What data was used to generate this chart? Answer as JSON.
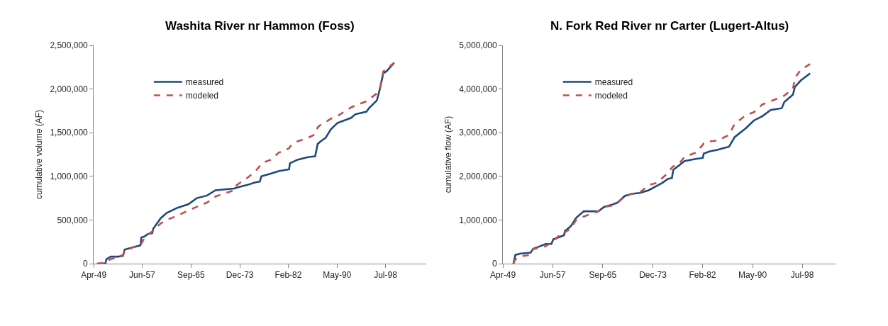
{
  "chart_data": [
    {
      "type": "line",
      "title": "Washita River nr Hammon (Foss)",
      "ylabel": "cumulative volume (AF)",
      "legend": "top left",
      "marker": "none",
      "x": [
        "1949-11",
        "1951-04",
        "1951-06",
        "1952-03",
        "1953-06",
        "1954-04",
        "1954-07",
        "1956-02",
        "1957-03",
        "1957-05",
        "1957-11",
        "1958-06",
        "1959-03",
        "1959-05",
        "1960-08",
        "1961-08",
        "1963-06",
        "1965-04",
        "1966-09",
        "1968-06",
        "1969-11",
        "1973-01",
        "1973-06",
        "1975-03",
        "1976-07",
        "1977-05",
        "1977-08",
        "1979-03",
        "1980-07",
        "1982-04",
        "1982-06",
        "1983-09",
        "1985-06",
        "1986-09",
        "1987-02",
        "1987-08",
        "1988-06",
        "1989-05",
        "1990-06",
        "1992-10",
        "1993-06",
        "1995-05",
        "1995-10",
        "1997-02",
        "1997-08",
        "1998-03",
        "1998-09",
        "2000-01"
      ],
      "xlim": [
        "1949-04-15",
        "2005-06-01"
      ],
      "xticks": [
        {
          "value": "1949-04-15",
          "label": "Apr-49"
        },
        {
          "value": "1957-06-15",
          "label": "Jun-57"
        },
        {
          "value": "1965-09-15",
          "label": "Sep-65"
        },
        {
          "value": "1973-12-15",
          "label": "Dec-73"
        },
        {
          "value": "1982-02-15",
          "label": "Feb-82"
        },
        {
          "value": "1990-05-15",
          "label": "May-90"
        },
        {
          "value": "1998-07-15",
          "label": "Jul-98"
        }
      ],
      "ylim": [
        0,
        2500000
      ],
      "yticks": [
        0,
        {
          "value": 500000,
          "label": "500,000"
        },
        {
          "value": 1000000,
          "label": "1,000,000"
        },
        {
          "value": 1500000,
          "label": "1,500,000"
        },
        {
          "value": 2000000,
          "label": "2,000,000"
        },
        {
          "value": 2500000,
          "label": "2,500,000"
        }
      ],
      "series": [
        {
          "name": "measured",
          "color": "#1f497d",
          "line_style": "solid",
          "values": [
            0,
            0,
            50000,
            80000,
            80000,
            90000,
            160000,
            190000,
            210000,
            300000,
            310000,
            340000,
            350000,
            400000,
            520000,
            580000,
            640000,
            680000,
            750000,
            780000,
            840000,
            860000,
            870000,
            900000,
            930000,
            940000,
            1000000,
            1030000,
            1060000,
            1080000,
            1150000,
            1190000,
            1220000,
            1230000,
            1370000,
            1400000,
            1440000,
            1540000,
            1610000,
            1670000,
            1710000,
            1740000,
            1780000,
            1870000,
            2000000,
            2180000,
            2200000,
            2300000
          ]
        },
        {
          "name": "modeled",
          "color": "#c0504d",
          "line_style": "dashed",
          "values": [
            0,
            10000,
            30000,
            50000,
            80000,
            100000,
            150000,
            190000,
            200000,
            230000,
            290000,
            330000,
            370000,
            380000,
            460000,
            500000,
            550000,
            610000,
            650000,
            700000,
            770000,
            840000,
            900000,
            980000,
            1050000,
            1120000,
            1150000,
            1190000,
            1270000,
            1320000,
            1340000,
            1400000,
            1440000,
            1480000,
            1560000,
            1590000,
            1620000,
            1660000,
            1690000,
            1790000,
            1810000,
            1860000,
            1880000,
            1950000,
            2000000,
            2200000,
            2230000,
            2300000
          ]
        }
      ]
    },
    {
      "type": "line",
      "title": "N. Fork Red River nr Carter (Lugert-Altus)",
      "ylabel": "cumulative flow (AF)",
      "legend": "top left",
      "marker": "none",
      "x": [
        "1951-01",
        "1951-05",
        "1952-04",
        "1953-11",
        "1954-04",
        "1955-06",
        "1956-05",
        "1957-04",
        "1957-08",
        "1958-06",
        "1959-05",
        "1959-07",
        "1960-06",
        "1961-05",
        "1962-08",
        "1965-01",
        "1965-12",
        "1967-04",
        "1968-03",
        "1969-05",
        "1970-07",
        "1971-11",
        "1973-04",
        "1974-08",
        "1975-07",
        "1976-06",
        "1977-02",
        "1977-05",
        "1978-04",
        "1979-03",
        "1981-01",
        "1982-03",
        "1982-05",
        "1983-04",
        "1984-09",
        "1986-07",
        "1987-06",
        "1989-04",
        "1990-08",
        "1992-01",
        "1993-05",
        "1995-03",
        "1995-08",
        "1997-01",
        "1997-05",
        "1998-05",
        "1999-11"
      ],
      "xlim": [
        "1949-04-15",
        "2004-01-01"
      ],
      "xticks": [
        {
          "value": "1949-04-15",
          "label": "Apr-49"
        },
        {
          "value": "1957-06-15",
          "label": "Jun-57"
        },
        {
          "value": "1965-09-15",
          "label": "Sep-65"
        },
        {
          "value": "1973-12-15",
          "label": "Dec-73"
        },
        {
          "value": "1982-02-15",
          "label": "Feb-82"
        },
        {
          "value": "1990-05-15",
          "label": "May-90"
        },
        {
          "value": "1998-07-15",
          "label": "Jul-98"
        }
      ],
      "ylim": [
        0,
        5000000
      ],
      "yticks": [
        0,
        {
          "value": 1000000,
          "label": "1,000,000"
        },
        {
          "value": 2000000,
          "label": "2,000,000"
        },
        {
          "value": 3000000,
          "label": "3,000,000"
        },
        {
          "value": 4000000,
          "label": "4,000,000"
        },
        {
          "value": 5000000,
          "label": "5,000,000"
        }
      ],
      "series": [
        {
          "name": "measured",
          "color": "#1f497d",
          "line_style": "solid",
          "values": [
            0,
            200000,
            230000,
            250000,
            340000,
            400000,
            450000,
            450000,
            560000,
            600000,
            650000,
            750000,
            850000,
            1050000,
            1200000,
            1200000,
            1300000,
            1350000,
            1400000,
            1550000,
            1600000,
            1620000,
            1680000,
            1780000,
            1850000,
            1940000,
            1960000,
            2150000,
            2250000,
            2350000,
            2400000,
            2420000,
            2520000,
            2570000,
            2610000,
            2680000,
            2900000,
            3100000,
            3280000,
            3380000,
            3520000,
            3560000,
            3700000,
            3870000,
            4050000,
            4200000,
            4360000
          ]
        },
        {
          "name": "modeled",
          "color": "#c0504d",
          "line_style": "dashed",
          "values": [
            0,
            100000,
            170000,
            200000,
            330000,
            370000,
            400000,
            480000,
            520000,
            630000,
            650000,
            720000,
            800000,
            1000000,
            1080000,
            1200000,
            1300000,
            1330000,
            1400000,
            1540000,
            1600000,
            1630000,
            1800000,
            1850000,
            1960000,
            2070000,
            2200000,
            2230000,
            2280000,
            2450000,
            2540000,
            2720000,
            2760000,
            2800000,
            2820000,
            2950000,
            3200000,
            3400000,
            3470000,
            3650000,
            3720000,
            3820000,
            3850000,
            4000000,
            4250000,
            4450000,
            4570000
          ]
        }
      ]
    }
  ]
}
